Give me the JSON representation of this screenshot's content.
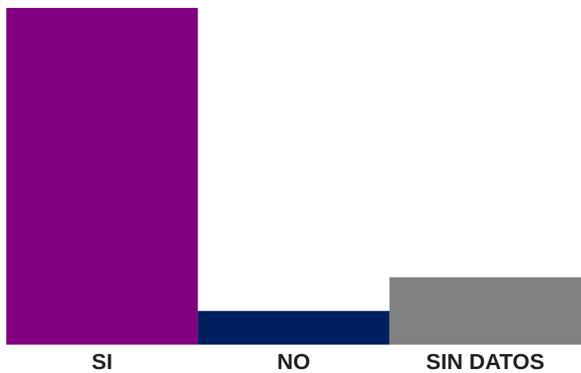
{
  "chart_data": {
    "type": "bar",
    "categories": [
      "SI",
      "NO",
      "SIN DATOS"
    ],
    "values": [
      100,
      10,
      20
    ],
    "colors": [
      "#800080",
      "#001F5F",
      "#828282"
    ],
    "title": "",
    "xlabel": "",
    "ylabel": "",
    "ylim": [
      0,
      100
    ],
    "grid": false,
    "legend": "none"
  }
}
